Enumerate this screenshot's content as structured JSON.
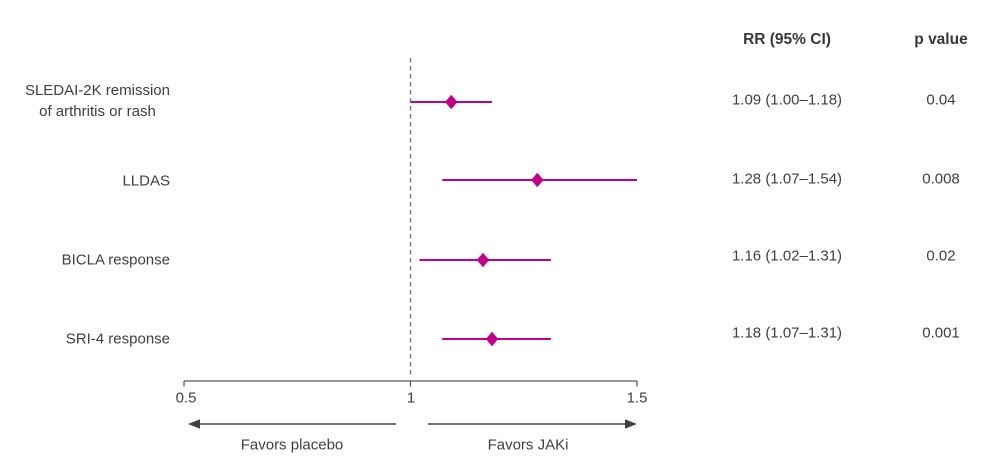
{
  "chart_data": {
    "type": "forest",
    "description": "Forest plot of relative risk (RR) for lupus outcomes with JAKi vs placebo",
    "columns": {
      "rr_header": "RR (95% CI)",
      "p_header": "p value"
    },
    "rows": [
      {
        "label": "SLEDAI-2K remission\nof arthritis or rash",
        "rr": 1.09,
        "ci_low": 1.0,
        "ci_high": 1.18,
        "rr_text": "1.09 (1.00–1.18)",
        "p_text": "0.04"
      },
      {
        "label": "LLDAS",
        "rr": 1.28,
        "ci_low": 1.07,
        "ci_high": 1.54,
        "rr_text": "1.28 (1.07–1.54)",
        "p_text": "0.008"
      },
      {
        "label": "BICLA response",
        "rr": 1.16,
        "ci_low": 1.02,
        "ci_high": 1.31,
        "rr_text": "1.16 (1.02–1.31)",
        "p_text": "0.02"
      },
      {
        "label": "SRI-4 response",
        "rr": 1.18,
        "ci_low": 1.07,
        "ci_high": 1.31,
        "rr_text": "1.18 (1.07–1.31)",
        "p_text": "0.001"
      }
    ],
    "axis": {
      "min": 0.5,
      "max": 1.5,
      "ticks": [
        "0.5",
        "1",
        "1.5"
      ],
      "tick_values": [
        0.5,
        1,
        1.5
      ],
      "reference_line": 1
    },
    "annotations": {
      "left_arrow_label": "Favors placebo",
      "right_arrow_label": "Favors JAKi"
    },
    "colors": {
      "marker": "#c2008c",
      "text": "#3f3f3f",
      "header_text": "#383838",
      "axis": "#595959",
      "dashed_line": "#7f7f7f",
      "arrow": "#404040"
    }
  }
}
